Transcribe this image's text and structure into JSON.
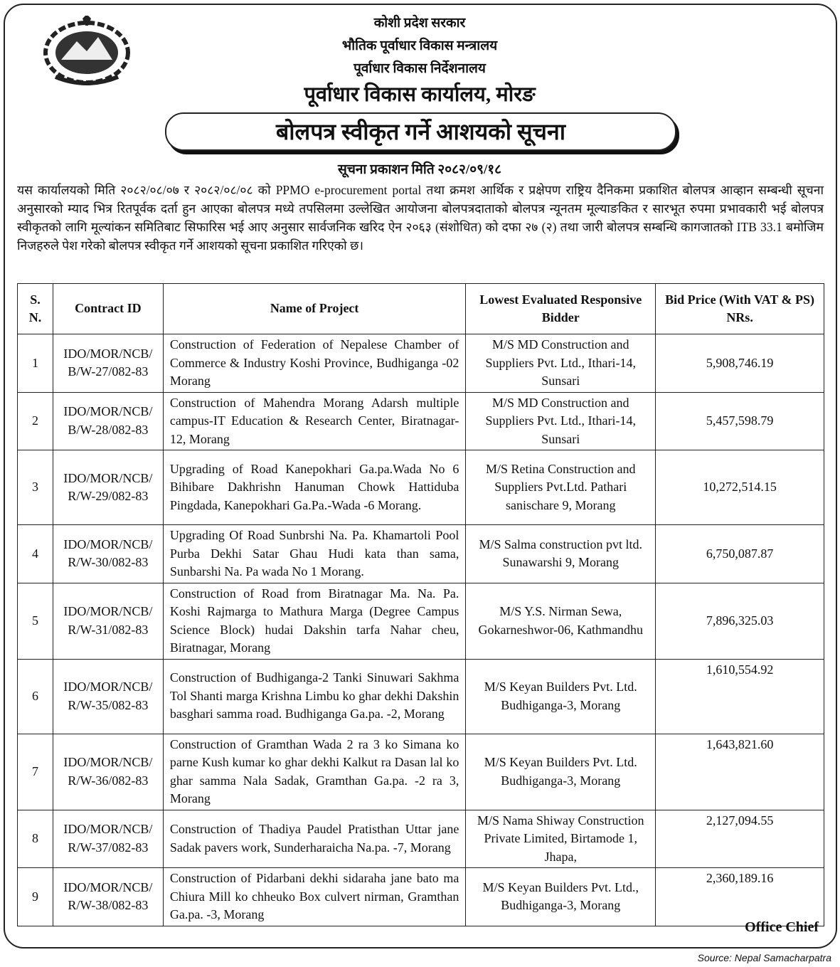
{
  "header": {
    "line1": "कोशी प्रदेश सरकार",
    "line2": "भौतिक पूर्वाधार विकास मन्त्रालय",
    "line3": "पूर्वाधार विकास निर्देशनालय",
    "office": "पूर्वाधार विकास कार्यालय, मोरङ",
    "title": "बोलपत्र स्वीकृत गर्ने आशयको सूचना",
    "publish_date": "सूचना प्रकाशन मिति २०८२/०९/१८"
  },
  "body": "यस कार्यालयको मिति २०८२/०८/०७ र २०८२/०८/०८ को PPMO e-procurement portal तथा क्रमश आर्थिक र प्रक्षेपण राष्ट्रिय दैनिकमा प्रकाशित बोलपत्र आव्हान सम्बन्धी सूचना अनुसारको म्याद भित्र रितपूर्वक दर्ता हुन आएका बोलपत्र मध्ये तपसिलमा उल्लेखित आयोजना बोलपत्रदाताको बोलपत्र न्यूनतम मूल्याङकित र सारभूत रुपमा प्रभावकारी भई  बोलपत्र स्वीकृतको लागि मूल्यांकन समितिबाट सिफारिस भई आए अनुसार सार्वजनिक खरिद ऐन २०६३ (संशोधित) को दफा २७ (२) तथा जारी बोलपत्र सम्बन्धि कागजातको ITB 33.1 बमोजिम निजहरुले पेश गरेको बोलपत्र स्वीकृत गर्ने आशयको सूचना प्रकाशित गरिएको छ।",
  "table": {
    "columns": [
      "S. N.",
      "Contract ID",
      "Name of Project",
      "Lowest Evaluated Responsive Bidder",
      "Bid Price (With VAT & PS) NRs."
    ],
    "rows": [
      {
        "sn": "1",
        "id": "IDO/MOR/NCB/B/W-27/082-83",
        "project": "Construction of Federation of Nepalese Chamber of Commerce & Industry Koshi Province, Budhiganga -02 Morang",
        "bidder": "M/S MD Construction and Suppliers Pvt. Ltd., Ithari-14, Sunsari",
        "price": "5,908,746.19"
      },
      {
        "sn": "2",
        "id": "IDO/MOR/NCB/B/W-28/082-83",
        "project": "Construction of Mahendra Morang Adarsh multiple campus-IT Education & Research Center, Biratnagar-12, Morang",
        "bidder": "M/S MD Construction and Suppliers Pvt. Ltd., Ithari-14, Sunsari",
        "price": "5,457,598.79"
      },
      {
        "sn": "3",
        "id": "IDO/MOR/NCB/R/W-29/082-83",
        "project": "Upgrading of Road Kanepokhari Ga.pa.Wada No 6 Bihibare Dakhrishn Hanuman Chowk Hattiduba Pingdada, Kanepokhari Ga.Pa.-Wada -6 Morang.",
        "bidder": "M/S Retina Construction and Suppliers Pvt.Ltd. Pathari sanischare 9, Morang",
        "price": "10,272,514.15"
      },
      {
        "sn": "4",
        "id": "IDO/MOR/NCB/R/W-30/082-83",
        "project": "Upgrading Of Road Sunbrshi Na. Pa. Khamartoli Pool Purba Dekhi Satar Ghau Hudi kata than sama, Sunbarshi Na. Pa wada No 1 Morang.",
        "bidder": "M/S Salma construction pvt ltd. Sunawarshi 9, Morang",
        "price": "6,750,087.87"
      },
      {
        "sn": "5",
        "id": "IDO/MOR/NCB/R/W-31/082-83",
        "project": "Construction of Road from Biratnagar Ma. Na. Pa. Koshi Rajmarga to Mathura Marga (Degree Campus Science Block) hudai Dakshin tarfa Nahar cheu, Biratnagar, Morang",
        "bidder": "M/S Y.S. Nirman Sewa, Gokarneshwor-06, Kathmandhu",
        "price": "7,896,325.03"
      },
      {
        "sn": "6",
        "id": "IDO/MOR/NCB/R/W-35/082-83",
        "project": "Construction of Budhiganga-2 Tanki Sinuwari Sakhma Tol Shanti marga Krishna Limbu ko ghar dekhi Dakshin basghari samma road. Budhiganga Ga.pa. -2, Morang",
        "bidder": "M/S Keyan Builders Pvt. Ltd. Budhiganga-3, Morang",
        "price": "1,610,554.92"
      },
      {
        "sn": "7",
        "id": "IDO/MOR/NCB/R/W-36/082-83",
        "project": "Construction of Gramthan Wada 2 ra 3 ko Simana ko parne Kush kumar ko ghar dekhi Kalkut ra Dasan lal ko ghar samma Nala Sadak, Gramthan Ga.pa. -2 ra 3, Morang",
        "bidder": "M/S Keyan Builders Pvt. Ltd. Budhiganga-3, Morang",
        "price": "1,643,821.60"
      },
      {
        "sn": "8",
        "id": "IDO/MOR/NCB/R/W-37/082-83",
        "project": "Construction of Thadiya Paudel Pratisthan Uttar jane Sadak pavers work, Sunderharaicha Na.pa. -7, Morang",
        "bidder": "M/S Nama Shiway Construction Private Limited, Birtamode 1, Jhapa,",
        "price": "2,127,094.55"
      },
      {
        "sn": "9",
        "id": "IDO/MOR/NCB/R/W-38/082-83",
        "project": "Construction of Pidarbani dekhi sidaraha jane bato ma Chiura Mill ko chheuko Box culvert nirman, Gramthan Ga.pa. -3, Morang",
        "bidder": "M/S Keyan Builders Pvt. Ltd., Budhiganga-3, Morang",
        "price": "2,360,189.16"
      }
    ]
  },
  "signature": "Office Chief",
  "source": "Source: Nepal Samacharpatra"
}
